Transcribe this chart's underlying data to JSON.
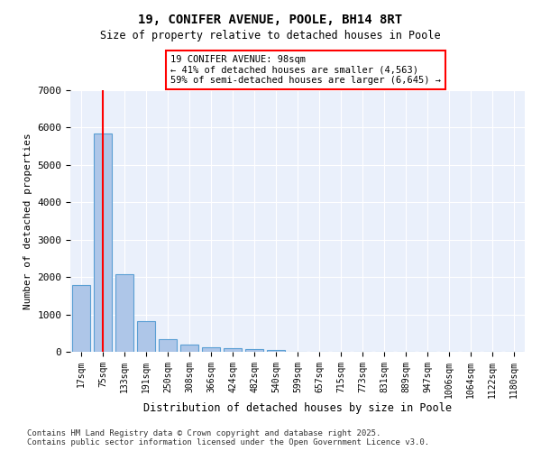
{
  "title1": "19, CONIFER AVENUE, POOLE, BH14 8RT",
  "title2": "Size of property relative to detached houses in Poole",
  "xlabel": "Distribution of detached houses by size in Poole",
  "ylabel": "Number of detached properties",
  "categories": [
    "17sqm",
    "75sqm",
    "133sqm",
    "191sqm",
    "250sqm",
    "308sqm",
    "366sqm",
    "424sqm",
    "482sqm",
    "540sqm",
    "599sqm",
    "657sqm",
    "715sqm",
    "773sqm",
    "831sqm",
    "889sqm",
    "947sqm",
    "1006sqm",
    "1064sqm",
    "1122sqm",
    "1180sqm"
  ],
  "values": [
    1780,
    5830,
    2080,
    820,
    340,
    185,
    110,
    95,
    80,
    60,
    0,
    0,
    0,
    0,
    0,
    0,
    0,
    0,
    0,
    0,
    0
  ],
  "bar_color": "#aec6e8",
  "bar_edgecolor": "#5a9fd4",
  "vline_x": 1,
  "vline_color": "red",
  "annotation_title": "19 CONIFER AVENUE: 98sqm",
  "annotation_line1": "← 41% of detached houses are smaller (4,563)",
  "annotation_line2": "59% of semi-detached houses are larger (6,645) →",
  "annotation_box_color": "white",
  "annotation_box_edgecolor": "red",
  "ylim": [
    0,
    7000
  ],
  "yticks": [
    0,
    1000,
    2000,
    3000,
    4000,
    5000,
    6000,
    7000
  ],
  "bg_color": "#eaf0fb",
  "grid_color": "white",
  "footer1": "Contains HM Land Registry data © Crown copyright and database right 2025.",
  "footer2": "Contains public sector information licensed under the Open Government Licence v3.0."
}
